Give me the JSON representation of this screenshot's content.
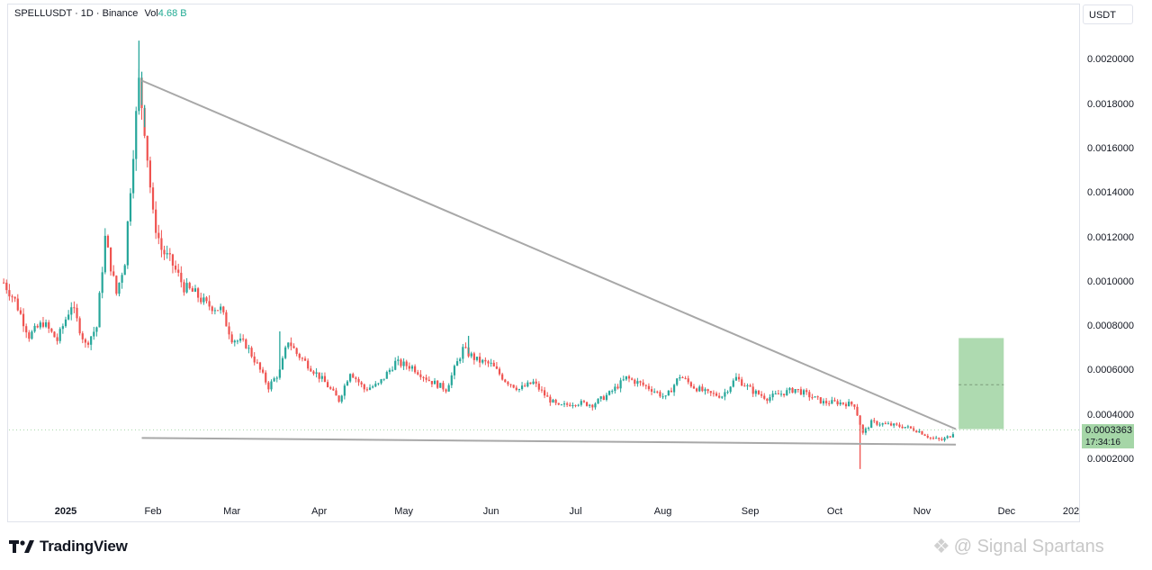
{
  "header": {
    "symbol": "SPELLUSDT",
    "interval": "1D",
    "exchange": "Binance",
    "volume_label": "Vol",
    "volume_value": "4.68 B",
    "separator": "·"
  },
  "currency_button": "USDT",
  "price_label": {
    "value": "0.0003363",
    "countdown": "17:34:16"
  },
  "brand": {
    "name": "TradingView"
  },
  "watermark": {
    "text": "@ Signal Spartans"
  },
  "colors": {
    "up": "#26a69a",
    "down": "#ef5350",
    "trendline": "#a8a8a8",
    "target": "#a5d6a7"
  },
  "chart_data": {
    "type": "candlestick",
    "y_ticks": [
      "0.0002000",
      "0.0004000",
      "0.0006000",
      "0.0008000",
      "0.0010000",
      "0.0012000",
      "0.0014000",
      "0.0016000",
      "0.0018000",
      "0.0020000"
    ],
    "x_ticks": [
      "2025",
      "Feb",
      "Mar",
      "Apr",
      "May",
      "Jun",
      "Jul",
      "Aug",
      "Sep",
      "Oct",
      "Nov",
      "Dec",
      "202"
    ],
    "ylim": [
      0.0,
      0.0022
    ],
    "last_price": 0.0003363,
    "trendlines": [
      {
        "name": "descending-resistance",
        "start": [
          "2025-01-28",
          0.00191
        ],
        "end": [
          "2025-11-13",
          0.00034
        ]
      },
      {
        "name": "horizontal-support",
        "start": [
          "2025-01-28",
          0.0003
        ],
        "end": [
          "2025-11-13",
          0.00027
        ]
      }
    ],
    "target_zone": {
      "start": "2025-11-14",
      "end": "2025-11-30",
      "low": 0.00034,
      "high": 0.00075,
      "mid": 0.00054
    },
    "anchors": [
      [
        "2024-12-10",
        0.001
      ],
      [
        "2024-12-14",
        0.00092
      ],
      [
        "2024-12-19",
        0.00076
      ],
      [
        "2024-12-24",
        0.00082
      ],
      [
        "2024-12-29",
        0.00074
      ],
      [
        "2025-01-03",
        0.0009
      ],
      [
        "2025-01-08",
        0.00072
      ],
      [
        "2025-01-12",
        0.0008
      ],
      [
        "2025-01-15",
        0.0012
      ],
      [
        "2025-01-19",
        0.00095
      ],
      [
        "2025-01-22",
        0.0011
      ],
      [
        "2025-01-25",
        0.0016
      ],
      [
        "2025-01-27",
        0.0019
      ],
      [
        "2025-01-29",
        0.0017
      ],
      [
        "2025-02-01",
        0.0013
      ],
      [
        "2025-02-04",
        0.00115
      ],
      [
        "2025-02-08",
        0.00108
      ],
      [
        "2025-02-12",
        0.00098
      ],
      [
        "2025-02-16",
        0.00095
      ],
      [
        "2025-02-20",
        0.0009
      ],
      [
        "2025-02-25",
        0.00088
      ],
      [
        "2025-03-01",
        0.00075
      ],
      [
        "2025-03-06",
        0.00072
      ],
      [
        "2025-03-10",
        0.00063
      ],
      [
        "2025-03-14",
        0.00053
      ],
      [
        "2025-03-18",
        0.0006
      ],
      [
        "2025-03-21",
        0.00074
      ],
      [
        "2025-03-24",
        0.00068
      ],
      [
        "2025-03-28",
        0.00063
      ],
      [
        "2025-04-03",
        0.00055
      ],
      [
        "2025-04-08",
        0.00047
      ],
      [
        "2025-04-12",
        0.0006
      ],
      [
        "2025-04-17",
        0.00052
      ],
      [
        "2025-04-22",
        0.00054
      ],
      [
        "2025-04-28",
        0.00064
      ],
      [
        "2025-05-04",
        0.00062
      ],
      [
        "2025-05-10",
        0.00056
      ],
      [
        "2025-05-16",
        0.00052
      ],
      [
        "2025-05-22",
        0.0007
      ],
      [
        "2025-05-27",
        0.00065
      ],
      [
        "2025-06-01",
        0.00063
      ],
      [
        "2025-06-06",
        0.00056
      ],
      [
        "2025-06-11",
        0.00052
      ],
      [
        "2025-06-16",
        0.00055
      ],
      [
        "2025-06-21",
        0.00048
      ],
      [
        "2025-06-25",
        0.00044
      ],
      [
        "2025-07-01",
        0.00046
      ],
      [
        "2025-07-07",
        0.00045
      ],
      [
        "2025-07-13",
        0.0005
      ],
      [
        "2025-07-19",
        0.00057
      ],
      [
        "2025-07-23",
        0.00055
      ],
      [
        "2025-07-28",
        0.00052
      ],
      [
        "2025-08-02",
        0.00048
      ],
      [
        "2025-08-07",
        0.00058
      ],
      [
        "2025-08-12",
        0.00053
      ],
      [
        "2025-08-17",
        0.0005
      ],
      [
        "2025-08-22",
        0.00049
      ],
      [
        "2025-08-27",
        0.00057
      ],
      [
        "2025-09-02",
        0.00051
      ],
      [
        "2025-09-07",
        0.00048
      ],
      [
        "2025-09-12",
        0.0005
      ],
      [
        "2025-09-17",
        0.00052
      ],
      [
        "2025-09-22",
        0.00049
      ],
      [
        "2025-09-27",
        0.00046
      ],
      [
        "2025-10-02",
        0.00046
      ],
      [
        "2025-10-08",
        0.00045
      ],
      [
        "2025-10-11",
        0.00032
      ],
      [
        "2025-10-14",
        0.00037
      ],
      [
        "2025-10-20",
        0.00036
      ],
      [
        "2025-10-26",
        0.00035
      ],
      [
        "2025-10-31",
        0.00033
      ],
      [
        "2025-11-04",
        0.0003
      ],
      [
        "2025-11-08",
        0.00029
      ],
      [
        "2025-11-11",
        0.00031
      ],
      [
        "2025-11-13",
        0.00034
      ]
    ],
    "spikes": [
      [
        "2025-01-27",
        0.00209
      ],
      [
        "2025-01-28",
        0.00195
      ],
      [
        "2025-01-29",
        0.0018
      ],
      [
        "2025-10-10",
        0.00016
      ],
      [
        "2025-03-18",
        0.00078
      ],
      [
        "2025-05-24",
        0.00076
      ]
    ]
  }
}
